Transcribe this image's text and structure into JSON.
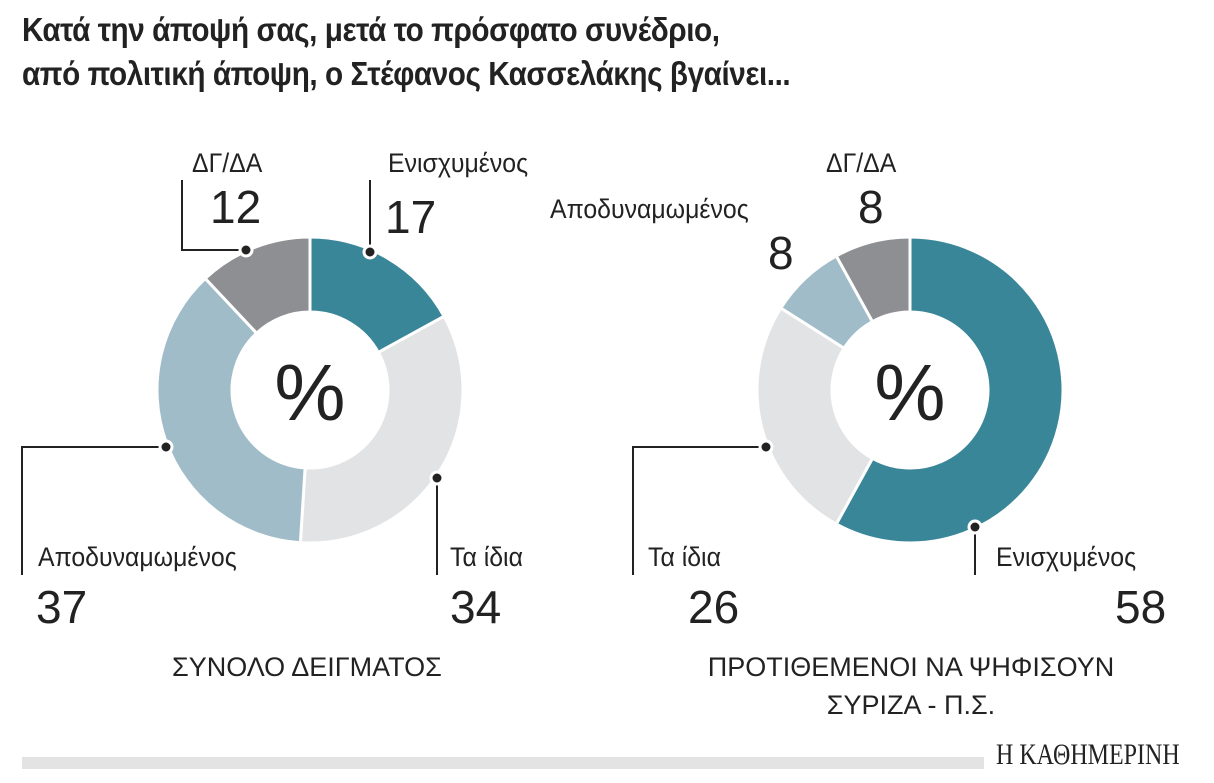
{
  "title_lines": [
    "Κατά την άποψή σας, μετά το πρόσφατο συνέδριο,",
    "από πολιτική άποψη, ο Στέφανος Κασσελάκης βγαίνει..."
  ],
  "logo": "Η ΚΑΘΗΜΕΡΙΝΗ",
  "chart_data": [
    {
      "type": "pie",
      "variant": "donut",
      "center_label": "%",
      "caption": "ΣΥΝΟΛΟ ΔΕΙΓΜΑΤΟΣ",
      "categories": [
        "Ενισχυμένος",
        "Τα ίδια",
        "Αποδυναμωμένος",
        "ΔΓ/ΔΑ"
      ],
      "values": [
        17,
        34,
        37,
        12
      ],
      "colors": [
        "#3a8699",
        "#e2e3e4",
        "#a0bcc8",
        "#8e8f93"
      ]
    },
    {
      "type": "pie",
      "variant": "donut",
      "center_label": "%",
      "caption": "ΠΡΟΤΙΘΕΜΕΝΟΙ ΝΑ ΨΗΦΙΣΟΥΝ ΣΥΡΙΖΑ - Π.Σ.",
      "caption_lines": [
        "ΠΡΟΤΙΘΕΜΕΝΟΙ ΝΑ ΨΗΦΙΣΟΥΝ",
        "ΣΥΡΙΖΑ - Π.Σ."
      ],
      "categories": [
        "Ενισχυμένος",
        "Τα ίδια",
        "Αποδυναμωμένος",
        "ΔΓ/ΔΑ"
      ],
      "values": [
        58,
        26,
        8,
        8
      ],
      "colors": [
        "#3a8699",
        "#e2e3e4",
        "#a0bcc8",
        "#8e8f93"
      ]
    }
  ]
}
